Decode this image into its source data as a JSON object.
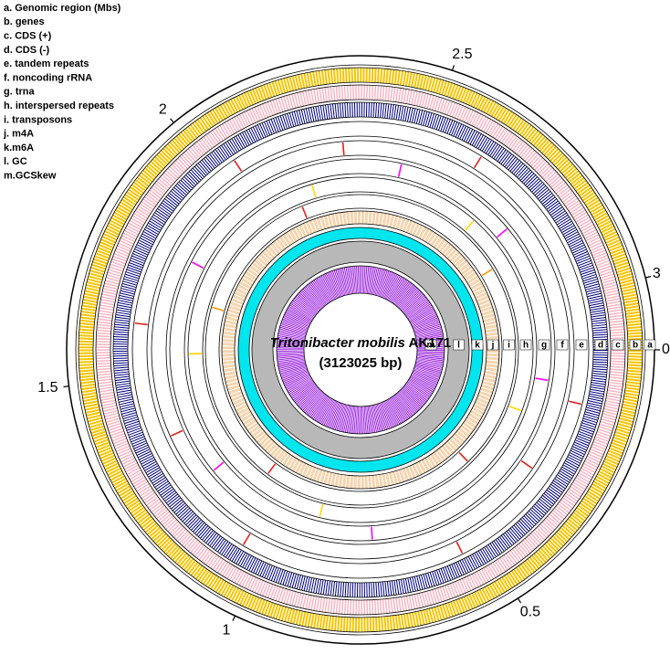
{
  "chart_data": {
    "type": "circular-genome",
    "organism": "Tritonibacter mobilis",
    "strain": "AK171",
    "size_label": "(3123025 bp)",
    "xlim": [
      0,
      3.123025
    ],
    "xticks": [
      0,
      0.5,
      1,
      1.5,
      2,
      2.5,
      3
    ],
    "tracks": [
      {
        "id": "a",
        "legend": "a. Genomic region (Mbs)"
      },
      {
        "id": "b",
        "legend": "b. genes",
        "color": "#f5c400"
      },
      {
        "id": "c",
        "legend": "c. CDS (+)",
        "color": "#f7b6c2"
      },
      {
        "id": "d",
        "legend": "d. CDS (-)",
        "color": "#00007f"
      },
      {
        "id": "e",
        "legend": "e. tandem repeats",
        "features": [
          {
            "start": 0.12,
            "color": "#e0201b"
          },
          {
            "start": 0.55,
            "color": "#e0201b"
          },
          {
            "start": 1.05,
            "color": "#e0201b"
          },
          {
            "start": 1.62,
            "color": "#e0201b"
          },
          {
            "start": 2.05,
            "color": "#e0201b"
          },
          {
            "start": 2.62,
            "color": "#e0201b"
          }
        ]
      },
      {
        "id": "f",
        "legend": "f.  noncoding rRNA",
        "features": [
          {
            "start": 0.3,
            "color": "#e0201b"
          },
          {
            "start": 1.35,
            "color": "#e0201b"
          },
          {
            "start": 2.3,
            "color": "#e0201b"
          }
        ]
      },
      {
        "id": "g",
        "legend": "g. trna",
        "features": [
          {
            "start": 0.08,
            "color": "#ff00ff"
          },
          {
            "start": 0.75,
            "color": "#ff00ff"
          },
          {
            "start": 1.22,
            "color": "#ff00ff"
          },
          {
            "start": 1.8,
            "color": "#ff00ff"
          },
          {
            "start": 2.45,
            "color": "#ff00ff"
          },
          {
            "start": 2.78,
            "color": "#ff00ff"
          }
        ]
      },
      {
        "id": "h",
        "legend": "h. interspersed repeats",
        "features": [
          {
            "start": 0.18,
            "color": "#ffd700"
          },
          {
            "start": 0.9,
            "color": "#ffd700"
          },
          {
            "start": 1.55,
            "color": "#ffd700"
          },
          {
            "start": 2.2,
            "color": "#ffd700"
          },
          {
            "start": 2.7,
            "color": "#ffd700"
          }
        ]
      },
      {
        "id": "i",
        "legend": "i. transposons",
        "features": [
          {
            "start": 0.4,
            "color": "#e0201b"
          },
          {
            "start": 1.1,
            "color": "#e0201b"
          },
          {
            "start": 1.7,
            "color": "#ff9900"
          },
          {
            "start": 2.15,
            "color": "#e0201b"
          },
          {
            "start": 2.85,
            "color": "#ff9900"
          }
        ]
      },
      {
        "id": "j",
        "legend": "j. m4A",
        "color": "#f5d5b0"
      },
      {
        "id": "k",
        "legend": "k.m6A",
        "color": "#00e5ee"
      },
      {
        "id": "l",
        "legend": "l. GC",
        "color": "#b8b8b8"
      },
      {
        "id": "m",
        "legend": "m.GCSkew",
        "color": "#a030e0"
      }
    ]
  }
}
